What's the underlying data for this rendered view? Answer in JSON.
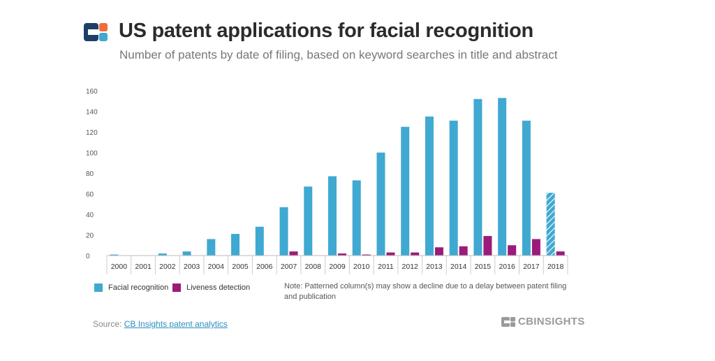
{
  "header": {
    "title": "US patent applications for facial recognition",
    "subtitle": "Number of patents by date of filing, based on keyword searches in title and abstract"
  },
  "chart_data": {
    "type": "bar",
    "categories": [
      "2000",
      "2001",
      "2002",
      "2003",
      "2004",
      "2005",
      "2006",
      "2007",
      "2008",
      "2009",
      "2010",
      "2011",
      "2012",
      "2013",
      "2014",
      "2015",
      "2016",
      "2017",
      "2018"
    ],
    "series": [
      {
        "name": "Facial recognition",
        "color": "#3fa9d1",
        "values": [
          1,
          0,
          2,
          4,
          16,
          21,
          28,
          47,
          67,
          77,
          73,
          100,
          125,
          135,
          131,
          152,
          153,
          131,
          61
        ]
      },
      {
        "name": "Liveness detection",
        "color": "#9b1b7a",
        "values": [
          0,
          0,
          0,
          0,
          0,
          0,
          0,
          4,
          0,
          2,
          1,
          3,
          3,
          8,
          9,
          19,
          10,
          16,
          4
        ]
      }
    ],
    "patterned_category": "2018",
    "ylim": [
      0,
      160
    ],
    "yticks": [
      "0",
      "20",
      "40",
      "60",
      "80",
      "100",
      "120",
      "140",
      "160"
    ],
    "xlabel": "",
    "ylabel": ""
  },
  "legend": {
    "facial": "Facial recognition",
    "liveness": "Liveness detection",
    "facial_color": "#3fa9d1",
    "liveness_color": "#9b1b7a"
  },
  "note": "Note: Patterned column(s) may show a decline due to a delay between patent filing and publication",
  "source": {
    "prefix": "Source:",
    "link": "CB Insights patent analytics"
  },
  "brand": {
    "name": "CBINSIGHTS"
  }
}
